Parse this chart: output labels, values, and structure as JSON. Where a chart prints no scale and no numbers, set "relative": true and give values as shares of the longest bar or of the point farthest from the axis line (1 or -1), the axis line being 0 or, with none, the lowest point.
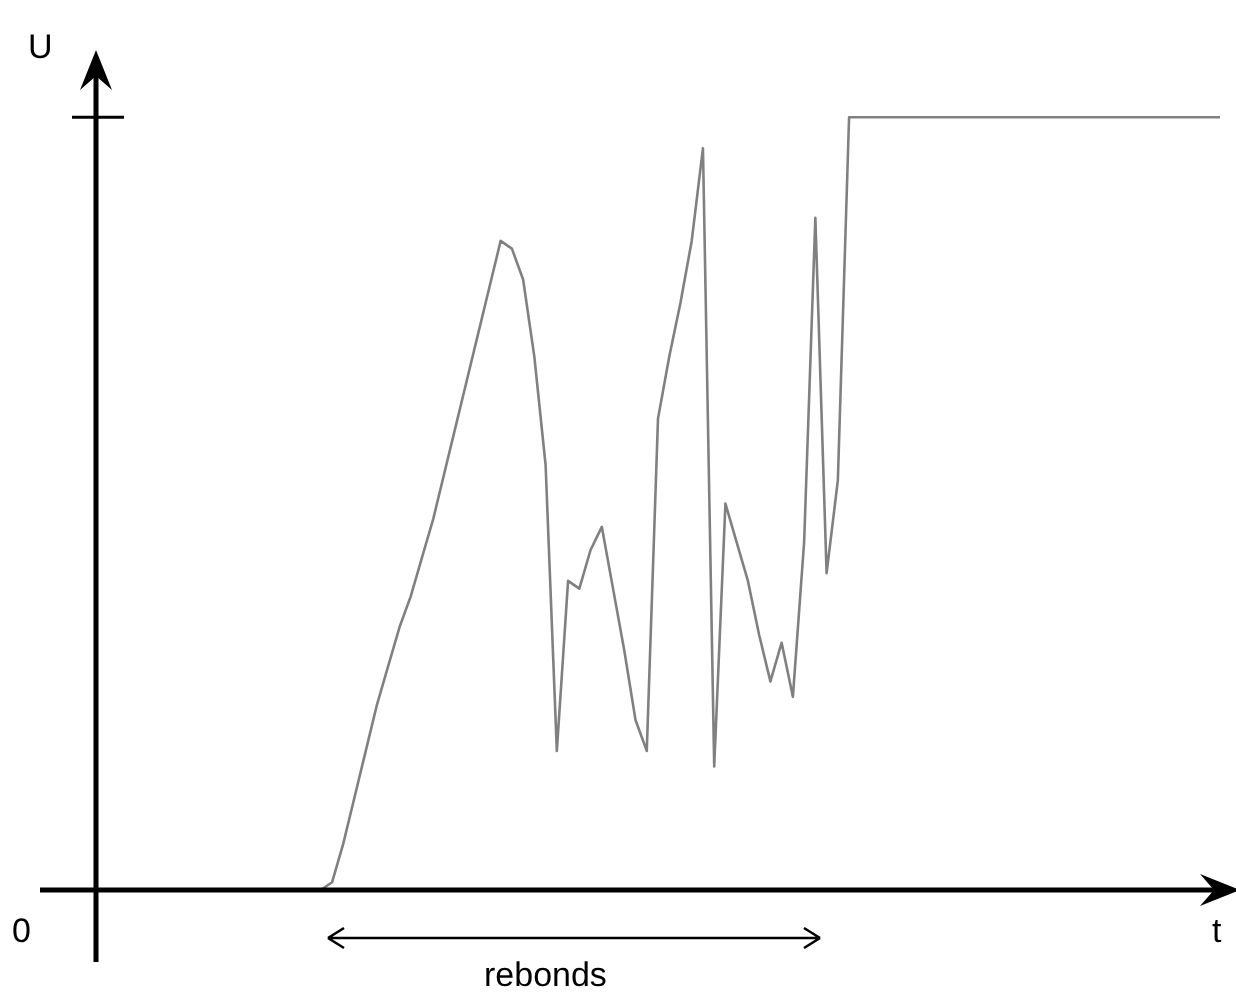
{
  "chart_data": {
    "type": "line",
    "relative": true,
    "xlabel": "t",
    "ylabel": "U",
    "grid": false,
    "legend": false,
    "marker": "none",
    "annotations": [
      "0",
      "rebonds"
    ],
    "categories": [
      null,
      null,
      null,
      null,
      null,
      null,
      null,
      null,
      null,
      null,
      null,
      null,
      null,
      null,
      null,
      null,
      null,
      null,
      null,
      null,
      null,
      null,
      null,
      null,
      null,
      null,
      null,
      null,
      null,
      null,
      null,
      null,
      null,
      null,
      null,
      null,
      null,
      null,
      null,
      null,
      null,
      null,
      null,
      null,
      null,
      null,
      null,
      null,
      null,
      null,
      null,
      null,
      null,
      null,
      null,
      null,
      null,
      null,
      null,
      null,
      null,
      null,
      null,
      null,
      null,
      null,
      null,
      null,
      null,
      null,
      null,
      null,
      null,
      null,
      null,
      null,
      null,
      null,
      null,
      null,
      null,
      null,
      null,
      null,
      null,
      null,
      null,
      null,
      null,
      null,
      null,
      null,
      null,
      null,
      null,
      null,
      null,
      null,
      null,
      null,
      null
    ],
    "series": [
      {
        "color": "#808080",
        "values": [
          0,
          0,
          0,
          0,
          0,
          0,
          0,
          0,
          0,
          0,
          0,
          0,
          0,
          0,
          0,
          0,
          0,
          0,
          0,
          0,
          0,
          0.01,
          0.06,
          0.12,
          0.18,
          0.24,
          0.29,
          0.34,
          0.38,
          0.43,
          0.48,
          0.54,
          0.6,
          0.66,
          0.72,
          0.78,
          0.84,
          0.83,
          0.79,
          0.69,
          0.55,
          0.18,
          0.4,
          0.39,
          0.44,
          0.47,
          0.39,
          0.31,
          0.22,
          0.18,
          0.61,
          0.69,
          0.76,
          0.84,
          0.96,
          0.16,
          0.5,
          0.45,
          0.4,
          0.33,
          0.27,
          0.32,
          0.25,
          0.45,
          0.87,
          0.41,
          0.53,
          1,
          1,
          1,
          1,
          1,
          1,
          1,
          1,
          1,
          1,
          1,
          1,
          1,
          1,
          1,
          1,
          1,
          1,
          1,
          1,
          1,
          1,
          1,
          1,
          1,
          1,
          1,
          1,
          1,
          1,
          1,
          1,
          1,
          1
        ]
      }
    ]
  }
}
